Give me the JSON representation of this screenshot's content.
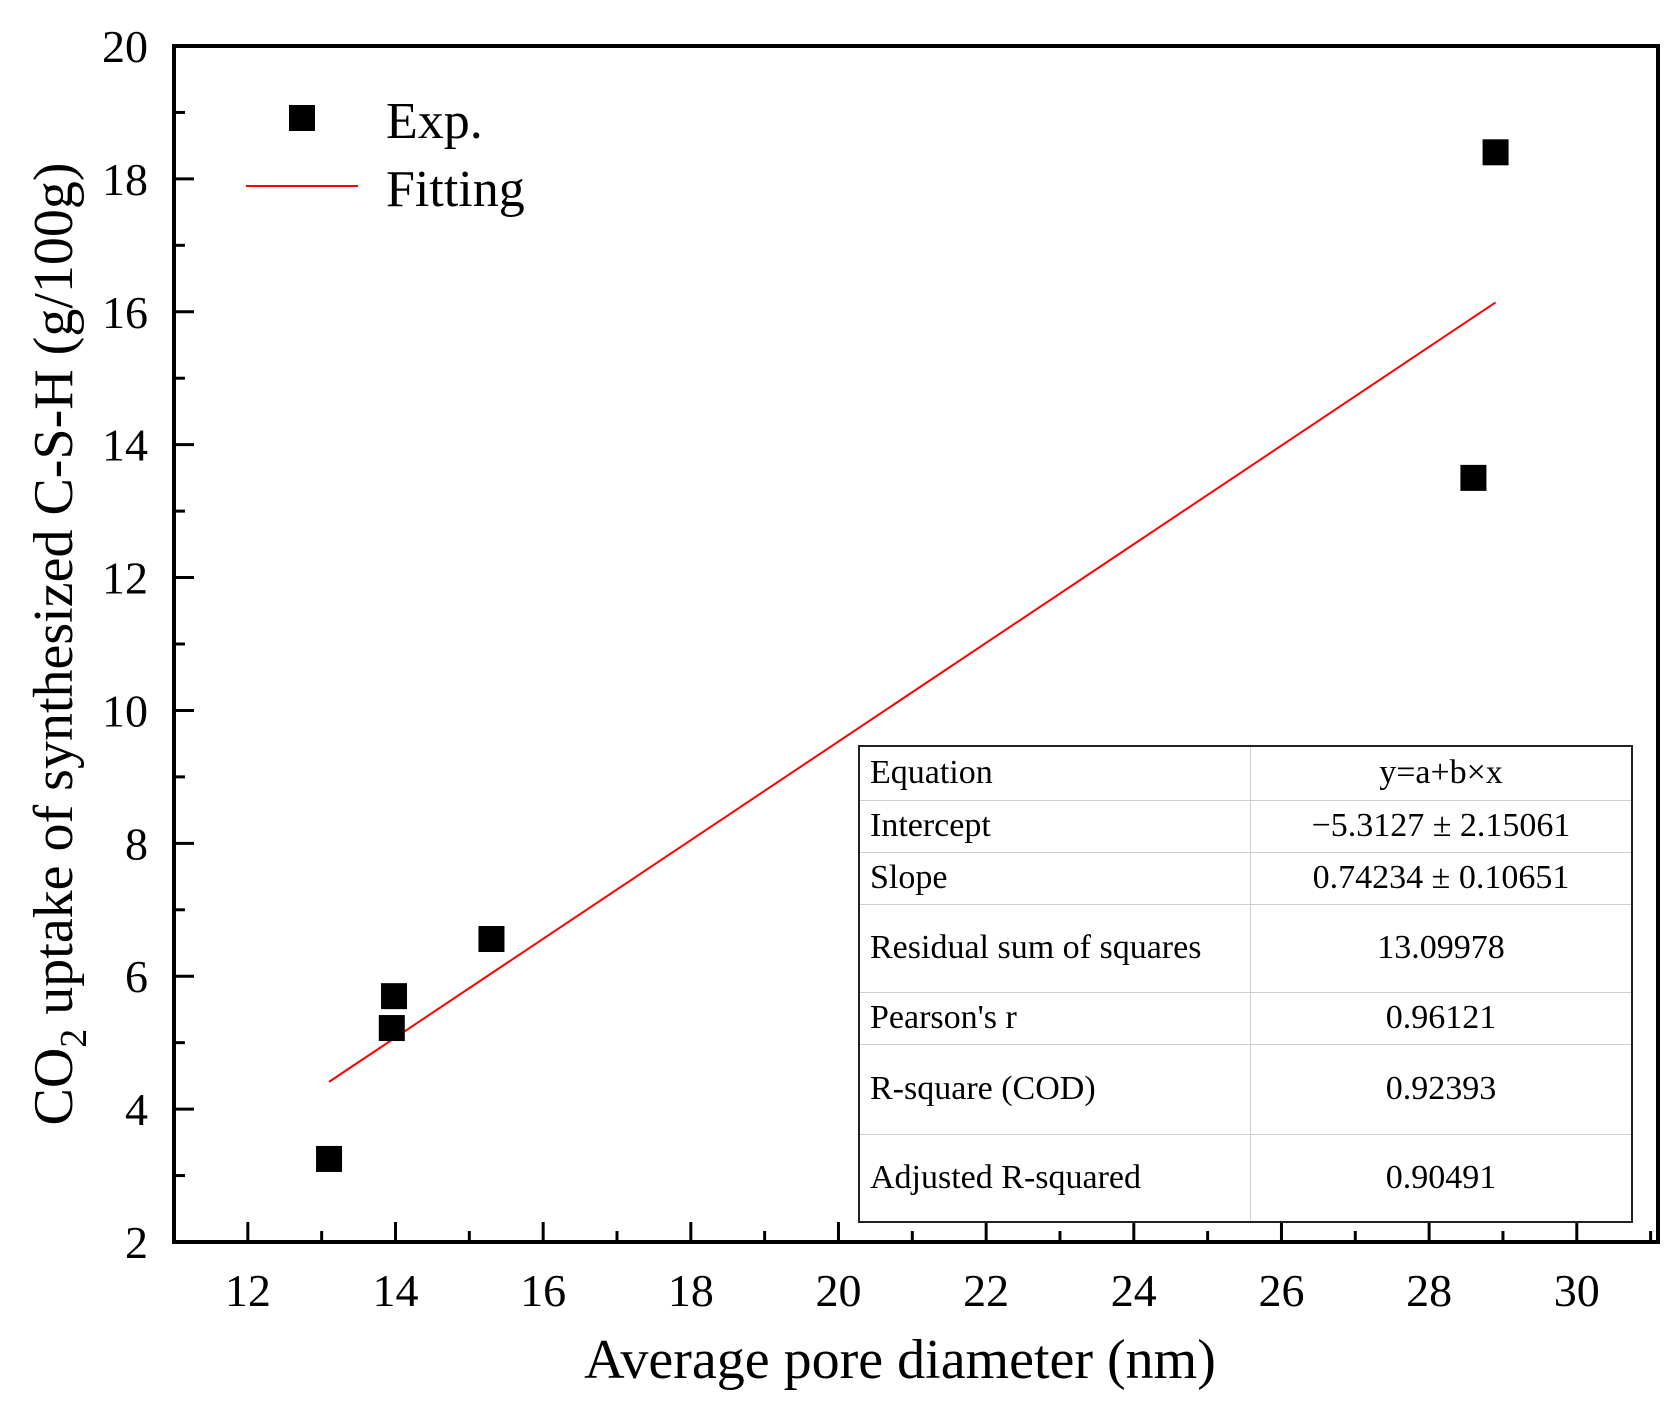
{
  "chart_data": {
    "type": "scatter",
    "title": "",
    "xlabel": "Average pore diameter (nm)",
    "ylabel_prefix": "CO",
    "ylabel_sub": "2",
    "ylabel_suffix": " uptake of synthesized C-S-H  (g/100g)",
    "xlim": [
      11,
      31.1
    ],
    "ylim": [
      2,
      20
    ],
    "xticks": [
      12,
      14,
      16,
      18,
      20,
      22,
      24,
      26,
      28,
      30
    ],
    "yticks": [
      2,
      4,
      6,
      8,
      10,
      12,
      14,
      16,
      18,
      20
    ],
    "series": [
      {
        "name": "Exp.",
        "marker": "square",
        "color": "#000000",
        "x": [
          13.1,
          13.95,
          13.98,
          15.3,
          28.6,
          28.9
        ],
        "y": [
          3.25,
          5.22,
          5.7,
          6.56,
          13.5,
          18.4
        ]
      },
      {
        "name": "Fitting",
        "kind": "line",
        "color": "#ff0000",
        "x": [
          13.1,
          28.9
        ],
        "y": [
          4.41,
          16.14
        ]
      }
    ],
    "legend": [
      "Exp.",
      "Fitting"
    ],
    "legend_position": "top-left",
    "fit_table": [
      {
        "key": "Equation",
        "value": "y=a+b×x"
      },
      {
        "key": "Intercept",
        "value": "−5.3127 ± 2.15061"
      },
      {
        "key": "Slope",
        "value": "0.74234 ± 0.10651"
      },
      {
        "key": "Residual sum of squares",
        "value": "13.09978"
      },
      {
        "key": "Pearson's r",
        "value": "0.96121"
      },
      {
        "key": "R-square (COD)",
        "value": "0.92393"
      },
      {
        "key": "Adjusted R-squared",
        "value": "0.90491"
      }
    ]
  }
}
